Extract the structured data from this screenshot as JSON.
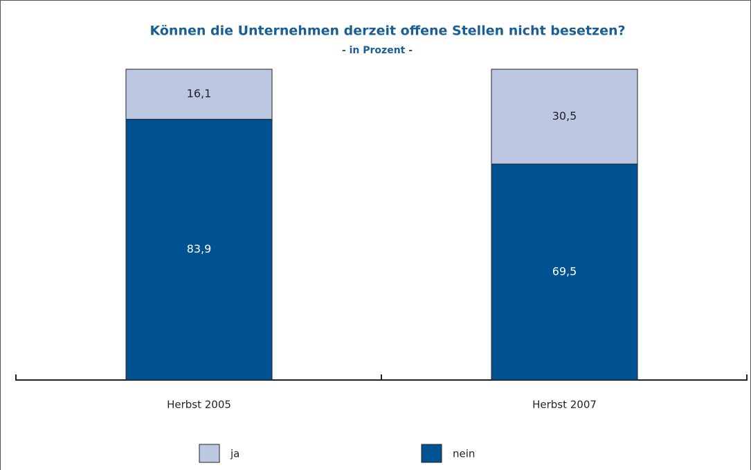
{
  "chart_data": {
    "type": "stacked_bar",
    "title": "Können die Unternehmen derzeit offene Stellen nicht besetzen?",
    "subtitle": "- in Prozent -",
    "categories": [
      "Herbst 2005",
      "Herbst 2007"
    ],
    "series": [
      {
        "name": "nein",
        "color": "#005293",
        "values": [
          83.9,
          69.5
        ],
        "value_labels": [
          "83,9",
          "69,5"
        ]
      },
      {
        "name": "ja",
        "color": "#bcc8e2",
        "values": [
          16.1,
          30.5
        ],
        "value_labels": [
          "16,1",
          "30,5"
        ]
      }
    ],
    "ylim": [
      0,
      100
    ]
  }
}
